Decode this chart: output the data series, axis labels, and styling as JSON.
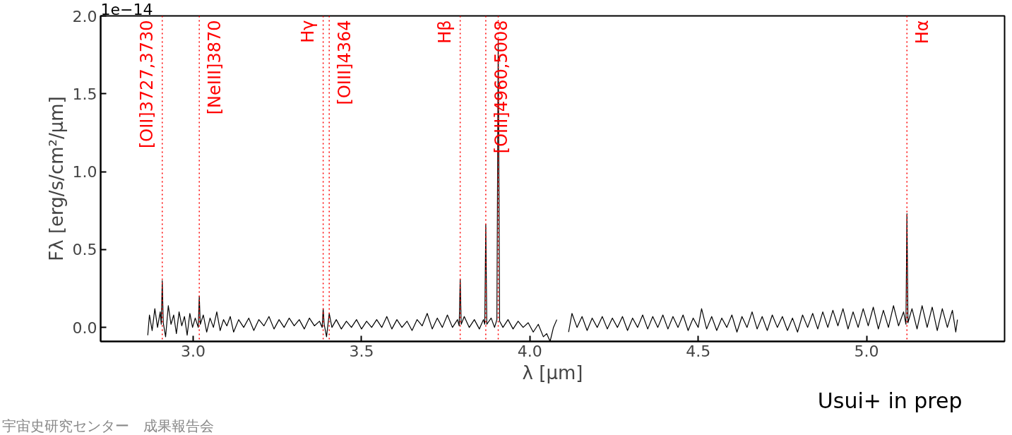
{
  "chart_data": {
    "type": "line",
    "xlabel": "λ [μm]",
    "ylabel": "Fλ [erg/s/cm²/μm]",
    "xlim": [
      2.725,
      5.41
    ],
    "ylim": [
      -0.09,
      2.0
    ],
    "xticks": [
      {
        "value": 3.0,
        "label": "3.0"
      },
      {
        "value": 3.5,
        "label": "3.5"
      },
      {
        "value": 4.0,
        "label": "4.0"
      },
      {
        "value": 4.5,
        "label": "4.5"
      },
      {
        "value": 5.0,
        "label": "5.0"
      }
    ],
    "yticks": [
      {
        "value": 0,
        "label": "0.0"
      },
      {
        "value": 0.5,
        "label": "0.5"
      },
      {
        "value": 1.0,
        "label": "1.0"
      },
      {
        "value": 1.5,
        "label": "1.5"
      },
      {
        "value": 2.0,
        "label": "2.0"
      }
    ],
    "grid": false,
    "line_style": "solid",
    "marker": "none",
    "series": [
      {
        "color": "#000000",
        "x": [
          2.865,
          2.87,
          2.878,
          2.886,
          2.894,
          2.902,
          2.905,
          2.908,
          2.911,
          2.918,
          2.926,
          2.934,
          2.942,
          2.95,
          2.958,
          2.966,
          2.974,
          2.982,
          2.99,
          2.998,
          3.006,
          3.015,
          3.018,
          3.021,
          3.03,
          3.04,
          3.05,
          3.06,
          3.07,
          3.08,
          3.09,
          3.1,
          3.11,
          3.12,
          3.135,
          3.15,
          3.165,
          3.18,
          3.195,
          3.21,
          3.225,
          3.24,
          3.255,
          3.27,
          3.285,
          3.3,
          3.315,
          3.33,
          3.345,
          3.36,
          3.375,
          3.383,
          3.386,
          3.389,
          3.396,
          3.404,
          3.412,
          3.425,
          3.44,
          3.455,
          3.47,
          3.485,
          3.5,
          3.515,
          3.53,
          3.545,
          3.56,
          3.575,
          3.59,
          3.605,
          3.62,
          3.635,
          3.65,
          3.665,
          3.68,
          3.695,
          3.71,
          3.725,
          3.74,
          3.755,
          3.77,
          3.785,
          3.79,
          3.793,
          3.796,
          3.805,
          3.82,
          3.835,
          3.85,
          3.862,
          3.866,
          3.869,
          3.872,
          3.885,
          3.895,
          3.902,
          3.906,
          3.91,
          3.92,
          3.935,
          3.95,
          3.965,
          3.98,
          3.995,
          4.01,
          4.025,
          4.04,
          4.05,
          4.06,
          4.07,
          4.08,
          4.095,
          4.115,
          4.125,
          4.14,
          4.155,
          4.17,
          4.185,
          4.2,
          4.215,
          4.23,
          4.245,
          4.26,
          4.275,
          4.29,
          4.305,
          4.32,
          4.335,
          4.35,
          4.365,
          4.38,
          4.395,
          4.41,
          4.425,
          4.44,
          4.455,
          4.47,
          4.485,
          4.5,
          4.51,
          4.525,
          4.54,
          4.555,
          4.57,
          4.585,
          4.6,
          4.615,
          4.63,
          4.645,
          4.66,
          4.675,
          4.69,
          4.705,
          4.72,
          4.735,
          4.75,
          4.765,
          4.78,
          4.795,
          4.81,
          4.825,
          4.84,
          4.855,
          4.87,
          4.885,
          4.9,
          4.915,
          4.93,
          4.945,
          4.96,
          4.975,
          4.99,
          5.005,
          5.02,
          5.035,
          5.05,
          5.065,
          5.08,
          5.095,
          5.11,
          5.117,
          5.12,
          5.123,
          5.135,
          5.15,
          5.165,
          5.18,
          5.195,
          5.21,
          5.225,
          5.24,
          5.255,
          5.265,
          5.27
        ],
        "values": [
          -0.05,
          0.08,
          -0.02,
          0.12,
          0.0,
          0.1,
          0.02,
          0.3,
          0.03,
          -0.06,
          0.14,
          0.02,
          0.08,
          -0.04,
          0.1,
          0.01,
          0.07,
          -0.05,
          0.09,
          0.0,
          0.06,
          0.0,
          0.2,
          0.02,
          0.08,
          -0.03,
          0.06,
          0.0,
          0.1,
          -0.02,
          0.05,
          0.01,
          0.07,
          -0.03,
          0.05,
          0.0,
          0.06,
          -0.02,
          0.05,
          0.01,
          0.07,
          -0.01,
          0.05,
          0.0,
          0.06,
          0.01,
          0.05,
          -0.01,
          0.06,
          0.01,
          0.04,
          0.0,
          0.12,
          0.02,
          -0.06,
          0.09,
          0.0,
          0.05,
          -0.01,
          0.04,
          0.0,
          0.05,
          -0.01,
          0.04,
          0.0,
          0.05,
          0.0,
          0.07,
          -0.01,
          0.05,
          0.0,
          0.04,
          -0.02,
          0.05,
          0.01,
          0.09,
          -0.01,
          0.06,
          0.0,
          0.08,
          0.0,
          0.05,
          0.01,
          0.31,
          0.02,
          0.07,
          0.0,
          0.05,
          -0.01,
          0.05,
          0.02,
          0.66,
          0.02,
          0.06,
          0.0,
          0.05,
          1.85,
          0.04,
          0.0,
          0.05,
          -0.01,
          0.04,
          0.0,
          0.03,
          -0.03,
          0.02,
          -0.06,
          -0.04,
          -0.09,
          0.0,
          0.05,
          null,
          -0.03,
          0.09,
          0.0,
          0.07,
          -0.02,
          0.06,
          0.0,
          0.07,
          -0.01,
          0.06,
          0.0,
          0.07,
          -0.02,
          0.06,
          0.0,
          0.08,
          -0.01,
          0.07,
          0.0,
          0.08,
          -0.01,
          0.07,
          0.0,
          0.08,
          -0.02,
          0.06,
          0.0,
          0.12,
          -0.01,
          0.07,
          -0.02,
          0.06,
          0.0,
          0.08,
          -0.03,
          0.07,
          0.0,
          0.1,
          -0.01,
          0.07,
          -0.02,
          0.08,
          0.0,
          0.07,
          -0.02,
          0.06,
          -0.03,
          0.08,
          0.0,
          0.09,
          -0.01,
          0.1,
          0.0,
          0.11,
          0.01,
          0.12,
          -0.01,
          0.1,
          0.0,
          0.12,
          0.01,
          0.13,
          -0.01,
          0.11,
          0.0,
          0.14,
          0.01,
          0.1,
          0.02,
          0.73,
          0.03,
          0.12,
          -0.01,
          0.14,
          0.0,
          0.13,
          -0.02,
          0.12,
          0.0,
          0.11,
          -0.03,
          0.05
        ]
      }
    ],
    "ref_lines": [
      {
        "axis": "x",
        "value": 2.908,
        "label": "[OII]3727,3730",
        "color": "#ff0000",
        "line_style": "dotted"
      },
      {
        "axis": "x",
        "value": 3.018,
        "label": "[NeIII]3870",
        "color": "#ff0000",
        "line_style": "dotted"
      },
      {
        "axis": "x",
        "value": 3.386,
        "label": "Hγ",
        "color": "#ff0000",
        "line_style": "dotted"
      },
      {
        "axis": "x",
        "value": 3.404,
        "label": "[OIII]4364",
        "color": "#ff0000",
        "line_style": "dotted"
      },
      {
        "axis": "x",
        "value": 3.793,
        "label": "Hβ",
        "color": "#ff0000",
        "line_style": "dotted"
      },
      {
        "axis": "x",
        "value": 3.869,
        "label": "[OIII]4960,5008",
        "color": "#ff0000",
        "line_style": "dotted"
      },
      {
        "axis": "x",
        "value": 3.906,
        "label": null,
        "color": "#ff0000",
        "line_style": "dotted"
      },
      {
        "axis": "x",
        "value": 5.12,
        "label": "Hα",
        "color": "#ff0000",
        "line_style": "dotted"
      }
    ],
    "annotations": [
      "1e−14",
      "Usui+ in prep",
      "宇宙史研究センター　成果報告会"
    ]
  }
}
